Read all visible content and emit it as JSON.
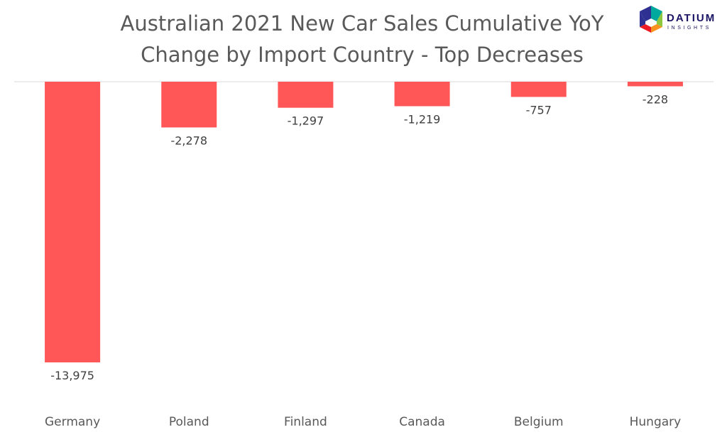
{
  "title_line1": "Australian 2021 New Car Sales Cumulative YoY",
  "title_line2": "Change by Import Country - Top Decreases",
  "logo": {
    "name": "DATIUM",
    "tagline": "INSIGHTS",
    "colors": [
      "#2e3192",
      "#00a99d",
      "#f7931e",
      "#ed1c24",
      "#8dc63f"
    ]
  },
  "chart_data": {
    "type": "bar",
    "categories": [
      "Germany",
      "Poland",
      "Finland",
      "Canada",
      "Belgium",
      "Hungary"
    ],
    "values": [
      -13975,
      -2278,
      -1297,
      -1219,
      -757,
      -228
    ],
    "value_labels": [
      "-13,975",
      "-2,278",
      "-1,297",
      "-1,219",
      "-757",
      "-228"
    ],
    "bar_color": "#ff5757",
    "ylim": [
      -14000,
      0
    ],
    "grid": false,
    "legend": "none"
  }
}
